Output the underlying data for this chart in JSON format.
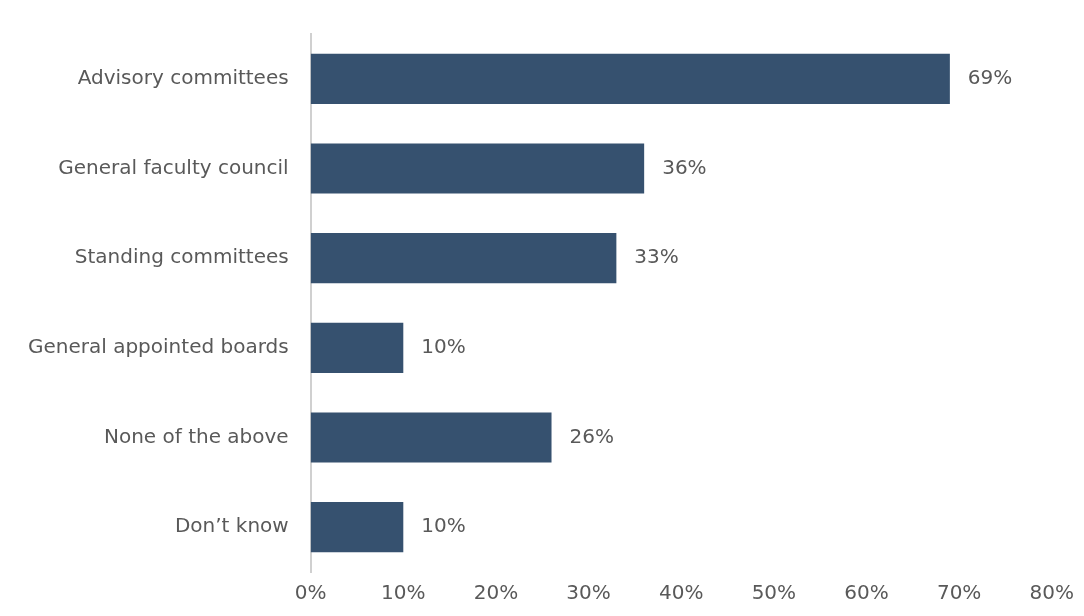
{
  "chart_data": {
    "type": "bar",
    "orientation": "horizontal",
    "categories": [
      "Advisory committees",
      "General faculty council",
      "Standing committees",
      "General appointed boards",
      "None of the above",
      "Don’t know"
    ],
    "values": [
      69,
      36,
      33,
      10,
      26,
      10
    ],
    "color": "#36516f",
    "value_labels": [
      "69%",
      "36%",
      "33%",
      "10%",
      "26%",
      "10%"
    ],
    "xlim": [
      0,
      80
    ],
    "xticks": [
      {
        "value": 0,
        "label": "0%"
      },
      {
        "value": 10,
        "label": "10%"
      },
      {
        "value": 20,
        "label": "20%"
      },
      {
        "value": 30,
        "label": "30%"
      },
      {
        "value": 40,
        "label": "40%"
      },
      {
        "value": 50,
        "label": "50%"
      },
      {
        "value": 60,
        "label": "60%"
      },
      {
        "value": 70,
        "label": "70%"
      },
      {
        "value": 80,
        "label": "80%"
      }
    ],
    "grid": false,
    "legend": false
  }
}
